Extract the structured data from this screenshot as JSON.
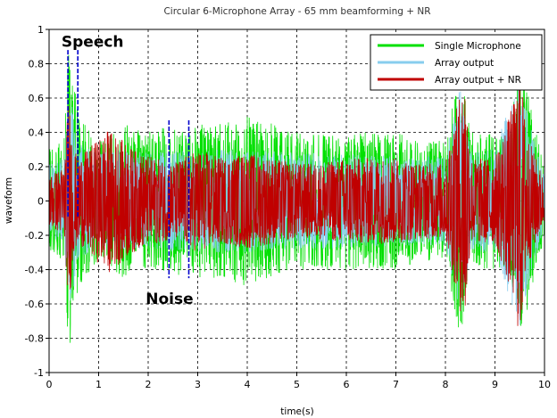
{
  "chart_data": {
    "type": "line",
    "title": "Circular 6-Microphone Array  - 65 mm beamforming + NR",
    "xlabel": "time(s)",
    "ylabel": "waveform",
    "xlim": [
      0,
      10
    ],
    "ylim": [
      -1,
      1
    ],
    "x_ticks": [
      "0",
      "1",
      "2",
      "3",
      "4",
      "5",
      "6",
      "7",
      "8",
      "9",
      "10"
    ],
    "y_ticks": [
      "-1",
      "-0.8",
      "-0.6",
      "-0.4",
      "-0.2",
      "0",
      "0.2",
      "0.4",
      "0.6",
      "0.8",
      "1"
    ],
    "grid": true,
    "legend_position": "top-right",
    "series": [
      {
        "name": "Single Microphone",
        "color": "#00e000",
        "envelope_x": [
          0,
          0.3,
          0.4,
          0.6,
          1.0,
          1.2,
          1.5,
          2.0,
          2.5,
          2.8,
          3.0,
          3.5,
          4.0,
          4.5,
          5.0,
          5.5,
          6.0,
          6.5,
          7.0,
          7.5,
          8.0,
          8.3,
          8.5,
          9.0,
          9.3,
          9.5,
          9.7,
          10.0
        ],
        "envelope_y": [
          0.3,
          0.35,
          0.9,
          0.5,
          0.35,
          0.4,
          0.45,
          0.4,
          0.45,
          0.4,
          0.45,
          0.45,
          0.5,
          0.45,
          0.4,
          0.4,
          0.4,
          0.4,
          0.4,
          0.35,
          0.35,
          0.8,
          0.4,
          0.4,
          0.4,
          0.85,
          0.6,
          0.2
        ]
      },
      {
        "name": "Array output",
        "color": "#87cdee",
        "envelope_x": [
          0,
          0.3,
          0.4,
          0.6,
          1.0,
          1.5,
          2.0,
          2.5,
          3.0,
          4.0,
          5.0,
          6.0,
          7.0,
          8.0,
          8.3,
          8.5,
          9.0,
          9.5,
          9.7,
          10.0
        ],
        "envelope_y": [
          0.22,
          0.25,
          0.65,
          0.35,
          0.28,
          0.3,
          0.28,
          0.3,
          0.3,
          0.3,
          0.28,
          0.28,
          0.26,
          0.26,
          0.7,
          0.3,
          0.3,
          0.75,
          0.45,
          0.15
        ]
      },
      {
        "name": "Array output + NR",
        "color": "#c00000",
        "envelope_x": [
          0,
          0.3,
          0.4,
          0.5,
          0.6,
          1.2,
          1.8,
          2.5,
          3.0,
          3.5,
          4.0,
          4.5,
          5.0,
          5.5,
          6.0,
          6.5,
          7.0,
          7.5,
          8.0,
          8.3,
          8.4,
          8.5,
          9.0,
          9.4,
          9.5,
          9.6,
          9.7,
          10.0
        ],
        "envelope_y": [
          0.15,
          0.2,
          0.62,
          0.3,
          0.25,
          0.42,
          0.28,
          0.22,
          0.3,
          0.25,
          0.28,
          0.25,
          0.22,
          0.22,
          0.25,
          0.25,
          0.25,
          0.22,
          0.22,
          0.65,
          0.75,
          0.25,
          0.25,
          0.6,
          0.85,
          0.5,
          0.35,
          0.12
        ]
      }
    ],
    "annotations": [
      {
        "text": "Speech",
        "x": 0.25,
        "y": 0.93,
        "band": [
          0.38,
          0.58
        ]
      },
      {
        "text": "Noise",
        "x": 1.95,
        "y": -0.57,
        "band": [
          2.42,
          2.82
        ]
      }
    ]
  }
}
